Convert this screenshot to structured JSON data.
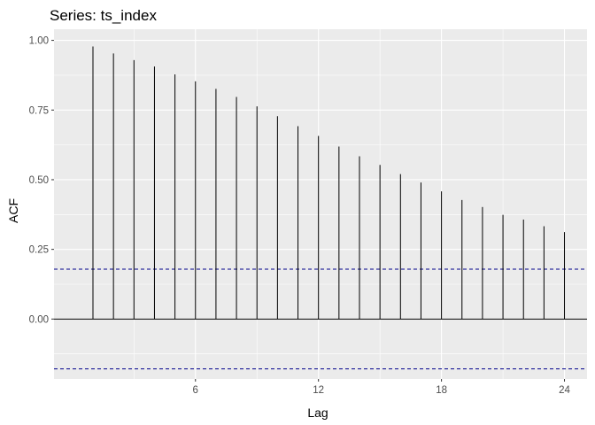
{
  "chart_data": {
    "type": "bar",
    "title": "Series: ts_index",
    "xlabel": "Lag",
    "ylabel": "ACF",
    "x": [
      1,
      2,
      3,
      4,
      5,
      6,
      7,
      8,
      9,
      10,
      11,
      12,
      13,
      14,
      15,
      16,
      17,
      18,
      19,
      20,
      21,
      22,
      23,
      24
    ],
    "values": [
      0.978,
      0.953,
      0.929,
      0.906,
      0.878,
      0.853,
      0.826,
      0.797,
      0.763,
      0.728,
      0.692,
      0.657,
      0.619,
      0.584,
      0.553,
      0.52,
      0.49,
      0.458,
      0.427,
      0.402,
      0.374,
      0.357,
      0.333,
      0.312
    ],
    "conf_limit": 0.179,
    "xlim": [
      -0.9,
      25.1
    ],
    "ylim": [
      -0.215,
      1.04
    ],
    "x_ticks": [
      6,
      12,
      18,
      24
    ],
    "y_ticks": [
      0.0,
      0.25,
      0.5,
      0.75,
      1.0
    ],
    "x_tick_labels": [
      "6",
      "12",
      "18",
      "24"
    ],
    "y_tick_labels": [
      "0.00",
      "0.25",
      "0.50",
      "0.75",
      "1.00"
    ],
    "grid": true,
    "colors": {
      "panel": "#ebebeb",
      "grid": "#ffffff",
      "bar": "#000000",
      "conf_line": "#00008b",
      "zero_line": "#000000"
    }
  }
}
